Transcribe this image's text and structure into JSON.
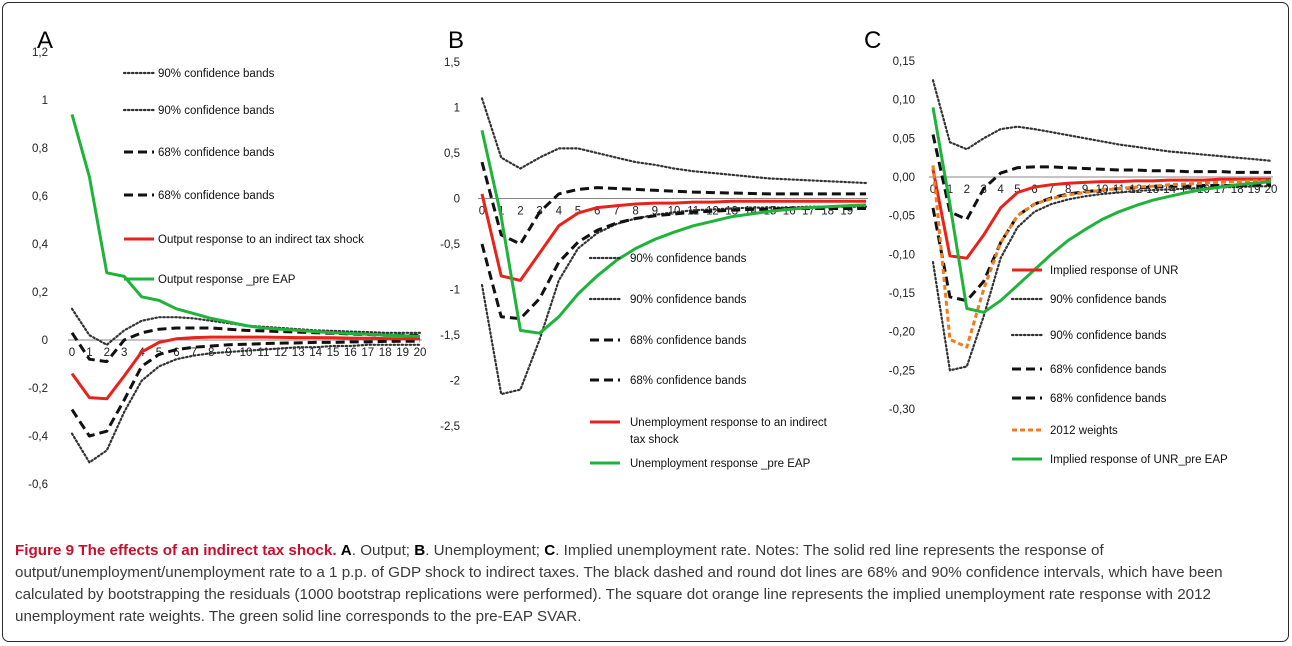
{
  "chart_data": [
    {
      "type": "line",
      "panel_label": "A",
      "x": [
        0,
        1,
        2,
        3,
        4,
        5,
        6,
        7,
        8,
        9,
        10,
        11,
        12,
        13,
        14,
        15,
        16,
        17,
        18,
        19,
        20
      ],
      "xticks": [
        "0",
        "1",
        "2",
        "3",
        "4",
        "5",
        "6",
        "7",
        "8",
        "9",
        "10",
        "11",
        "12",
        "13",
        "14",
        "15",
        "16",
        "17",
        "18",
        "19",
        "20"
      ],
      "ylim": [
        -0.6,
        1.2
      ],
      "yticks": [
        1.2,
        1,
        0.8,
        0.6,
        0.4,
        0.2,
        0,
        -0.2,
        -0.4,
        -0.6
      ],
      "ytick_labels": [
        "1,2",
        "1",
        "0,8",
        "0,6",
        "0,4",
        "0,2",
        "0",
        "-0,2",
        "-0,4",
        "-0,6"
      ],
      "series": [
        {
          "name": "90% confidence bands",
          "style": "dot",
          "color": "#333333",
          "values": [
            0.13,
            0.02,
            -0.02,
            0.04,
            0.08,
            0.095,
            0.095,
            0.09,
            0.08,
            0.07,
            0.06,
            0.055,
            0.05,
            0.045,
            0.04,
            0.038,
            0.035,
            0.033,
            0.03,
            0.03,
            0.03
          ]
        },
        {
          "name": "90% confidence bands",
          "style": "dot",
          "color": "#333333",
          "values": [
            -0.39,
            -0.51,
            -0.46,
            -0.3,
            -0.17,
            -0.11,
            -0.08,
            -0.065,
            -0.055,
            -0.05,
            -0.045,
            -0.04,
            -0.035,
            -0.03,
            -0.03,
            -0.025,
            -0.025,
            -0.02,
            -0.02,
            -0.02,
            -0.02
          ]
        },
        {
          "name": "68% confidence bands",
          "style": "dash",
          "color": "#111111",
          "values": [
            0.03,
            -0.08,
            -0.09,
            0.0,
            0.03,
            0.045,
            0.05,
            0.05,
            0.05,
            0.045,
            0.04,
            0.038,
            0.035,
            0.033,
            0.03,
            0.028,
            0.025,
            0.023,
            0.02,
            0.02,
            0.02
          ]
        },
        {
          "name": "68% confidence bands",
          "style": "dash",
          "color": "#111111",
          "values": [
            -0.29,
            -0.4,
            -0.38,
            -0.25,
            -0.11,
            -0.06,
            -0.04,
            -0.03,
            -0.025,
            -0.02,
            -0.018,
            -0.015,
            -0.013,
            -0.012,
            -0.01,
            -0.01,
            -0.008,
            -0.008,
            -0.006,
            -0.005,
            -0.005
          ]
        },
        {
          "name": "Output response to an indirect tax shock",
          "style": "solid",
          "color": "#e8231b",
          "values": [
            -0.14,
            -0.24,
            -0.245,
            -0.15,
            -0.05,
            -0.01,
            0.005,
            0.01,
            0.012,
            0.012,
            0.012,
            0.012,
            0.011,
            0.01,
            0.01,
            0.009,
            0.008,
            0.007,
            0.006,
            0.005,
            0.005
          ]
        },
        {
          "name": "Output response _pre EAP",
          "style": "solid",
          "color": "#1fb33b",
          "values": [
            0.94,
            0.68,
            0.28,
            0.265,
            0.18,
            0.165,
            0.13,
            0.11,
            0.09,
            0.075,
            0.06,
            0.05,
            0.045,
            0.04,
            0.035,
            0.03,
            0.027,
            0.024,
            0.02,
            0.018,
            0.015
          ]
        }
      ]
    },
    {
      "type": "line",
      "panel_label": "B",
      "x": [
        0,
        1,
        2,
        3,
        4,
        5,
        6,
        7,
        8,
        9,
        10,
        11,
        12,
        13,
        14,
        15,
        16,
        17,
        18,
        19,
        20
      ],
      "xticks": [
        "0",
        "1",
        "2",
        "3",
        "4",
        "5",
        "6",
        "7",
        "8",
        "9",
        "10",
        "11",
        "12",
        "13",
        "14",
        "15",
        "16",
        "17",
        "18",
        "19"
      ],
      "ylim": [
        -2.5,
        1.5
      ],
      "yticks": [
        1.5,
        1,
        0.5,
        0,
        -0.5,
        -1,
        -1.5,
        -2,
        -2.5
      ],
      "ytick_labels": [
        "1,5",
        "1",
        "0,5",
        "0",
        "-0,5",
        "-1",
        "-1,5",
        "-2",
        "-2,5"
      ],
      "series": [
        {
          "name": "90% confidence bands",
          "style": "dot",
          "color": "#333333",
          "values": [
            1.1,
            0.45,
            0.33,
            0.45,
            0.55,
            0.55,
            0.5,
            0.45,
            0.4,
            0.37,
            0.33,
            0.3,
            0.28,
            0.26,
            0.24,
            0.22,
            0.21,
            0.2,
            0.19,
            0.18,
            0.17
          ]
        },
        {
          "name": "90% confidence bands",
          "style": "dot",
          "color": "#333333",
          "values": [
            -0.95,
            -2.15,
            -2.1,
            -1.55,
            -0.9,
            -0.55,
            -0.38,
            -0.28,
            -0.22,
            -0.18,
            -0.15,
            -0.13,
            -0.12,
            -0.11,
            -0.1,
            -0.1,
            -0.1,
            -0.09,
            -0.09,
            -0.09,
            -0.09
          ]
        },
        {
          "name": "68% confidence bands",
          "style": "dash",
          "color": "#111111",
          "values": [
            0.4,
            -0.4,
            -0.5,
            -0.15,
            0.05,
            0.1,
            0.12,
            0.11,
            0.1,
            0.09,
            0.08,
            0.07,
            0.065,
            0.06,
            0.055,
            0.05,
            0.05,
            0.05,
            0.05,
            0.05,
            0.05
          ]
        },
        {
          "name": "68% confidence bands",
          "style": "dash",
          "color": "#111111",
          "values": [
            -0.5,
            -1.3,
            -1.32,
            -1.1,
            -0.7,
            -0.48,
            -0.35,
            -0.27,
            -0.22,
            -0.19,
            -0.17,
            -0.15,
            -0.14,
            -0.13,
            -0.12,
            -0.12,
            -0.11,
            -0.11,
            -0.11,
            -0.11,
            -0.11
          ]
        },
        {
          "name": "Unemployment response to an indirect tax shock",
          "style": "solid",
          "color": "#e8231b",
          "values": [
            0.05,
            -0.85,
            -0.9,
            -0.6,
            -0.3,
            -0.16,
            -0.1,
            -0.08,
            -0.06,
            -0.05,
            -0.05,
            -0.04,
            -0.04,
            -0.03,
            -0.03,
            -0.03,
            -0.03,
            -0.03,
            -0.03,
            -0.03,
            -0.03
          ]
        },
        {
          "name": "Unemployment response _pre EAP",
          "style": "solid",
          "color": "#1fb33b",
          "values": [
            0.75,
            -0.2,
            -1.45,
            -1.48,
            -1.3,
            -1.05,
            -0.85,
            -0.68,
            -0.55,
            -0.45,
            -0.37,
            -0.3,
            -0.25,
            -0.2,
            -0.17,
            -0.14,
            -0.12,
            -0.1,
            -0.09,
            -0.08,
            -0.07
          ]
        }
      ]
    },
    {
      "type": "line",
      "panel_label": "C",
      "x": [
        0,
        1,
        2,
        3,
        4,
        5,
        6,
        7,
        8,
        9,
        10,
        11,
        12,
        13,
        14,
        15,
        16,
        17,
        18,
        19,
        20
      ],
      "xticks": [
        "0",
        "1",
        "2",
        "3",
        "4",
        "5",
        "6",
        "7",
        "8",
        "9",
        "10",
        "11",
        "12",
        "13",
        "14",
        "15",
        "16",
        "17",
        "18",
        "19",
        "20"
      ],
      "ylim": [
        -0.3,
        0.15
      ],
      "yticks": [
        0.15,
        0.1,
        0.05,
        0,
        -0.05,
        -0.1,
        -0.15,
        -0.2,
        -0.25,
        -0.3
      ],
      "ytick_labels": [
        "0,15",
        "0,10",
        "0,05",
        "0,00",
        "-0,05",
        "-0,10",
        "-0,15",
        "-0,20",
        "-0,25",
        "-0,30"
      ],
      "series": [
        {
          "name": "Implied response of UNR",
          "style": "solid",
          "color": "#e8231b",
          "values": [
            0.01,
            -0.102,
            -0.105,
            -0.075,
            -0.04,
            -0.02,
            -0.013,
            -0.01,
            -0.008,
            -0.007,
            -0.006,
            -0.006,
            -0.005,
            -0.005,
            -0.004,
            -0.004,
            -0.004,
            -0.003,
            -0.003,
            -0.003,
            -0.003
          ]
        },
        {
          "name": "90% confidence bands",
          "style": "dot",
          "color": "#333333",
          "values": [
            0.125,
            0.045,
            0.036,
            0.05,
            0.062,
            0.065,
            0.062,
            0.058,
            0.054,
            0.05,
            0.046,
            0.042,
            0.039,
            0.036,
            0.033,
            0.031,
            0.029,
            0.027,
            0.025,
            0.023,
            0.021
          ]
        },
        {
          "name": "90% confidence bands",
          "style": "dot",
          "color": "#333333",
          "values": [
            -0.11,
            -0.25,
            -0.245,
            -0.18,
            -0.105,
            -0.065,
            -0.045,
            -0.035,
            -0.029,
            -0.025,
            -0.022,
            -0.02,
            -0.018,
            -0.017,
            -0.016,
            -0.015,
            -0.014,
            -0.013,
            -0.013,
            -0.012,
            -0.012
          ]
        },
        {
          "name": "68% confidence bands",
          "style": "dash",
          "color": "#111111",
          "values": [
            0.055,
            -0.045,
            -0.055,
            -0.015,
            0.005,
            0.012,
            0.013,
            0.013,
            0.012,
            0.011,
            0.01,
            0.009,
            0.009,
            0.008,
            0.008,
            0.007,
            0.007,
            0.007,
            0.006,
            0.006,
            0.006
          ]
        },
        {
          "name": "68% confidence bands",
          "style": "dash",
          "color": "#111111",
          "values": [
            -0.04,
            -0.155,
            -0.16,
            -0.135,
            -0.085,
            -0.05,
            -0.035,
            -0.027,
            -0.022,
            -0.019,
            -0.017,
            -0.015,
            -0.014,
            -0.013,
            -0.012,
            -0.012,
            -0.011,
            -0.011,
            -0.011,
            -0.01,
            -0.01
          ]
        },
        {
          "name": "2012 weights",
          "style": "square-dot",
          "color": "#f07b20",
          "values": [
            0.015,
            -0.21,
            -0.22,
            -0.145,
            -0.085,
            -0.05,
            -0.035,
            -0.028,
            -0.023,
            -0.02,
            -0.017,
            -0.015,
            -0.013,
            -0.012,
            -0.01,
            -0.009,
            -0.008,
            -0.007,
            -0.006,
            -0.005,
            -0.005
          ]
        },
        {
          "name": "Implied response of UNR_pre EAP",
          "style": "solid",
          "color": "#1fb33b",
          "values": [
            0.09,
            -0.035,
            -0.17,
            -0.175,
            -0.16,
            -0.14,
            -0.12,
            -0.1,
            -0.082,
            -0.068,
            -0.055,
            -0.045,
            -0.037,
            -0.03,
            -0.025,
            -0.02,
            -0.016,
            -0.013,
            -0.01,
            -0.008,
            -0.006
          ]
        }
      ]
    }
  ],
  "caption": {
    "title": "Figure 9 The effects of an indirect tax shock.",
    "panel_a_key": "A",
    "panel_a_text": ". Output;",
    "panel_b_key": "B",
    "panel_b_text": ". Unemployment;",
    "panel_c_key": "C",
    "panel_c_text": ". Implied unemployment rate. Notes: The solid red line represents the response of output/unemployment/unemployment rate to a 1 p.p. of GDP shock to indirect taxes. The black dashed and round dot lines are 68% and 90% confidence intervals, which have been calculated by bootstrapping the residuals (1000 bootstrap replications were performed). The square dot orange line represents the implied unemployment rate response with 2012 unemployment rate weights. The green solid line corresponds to the pre-EAP SVAR."
  }
}
